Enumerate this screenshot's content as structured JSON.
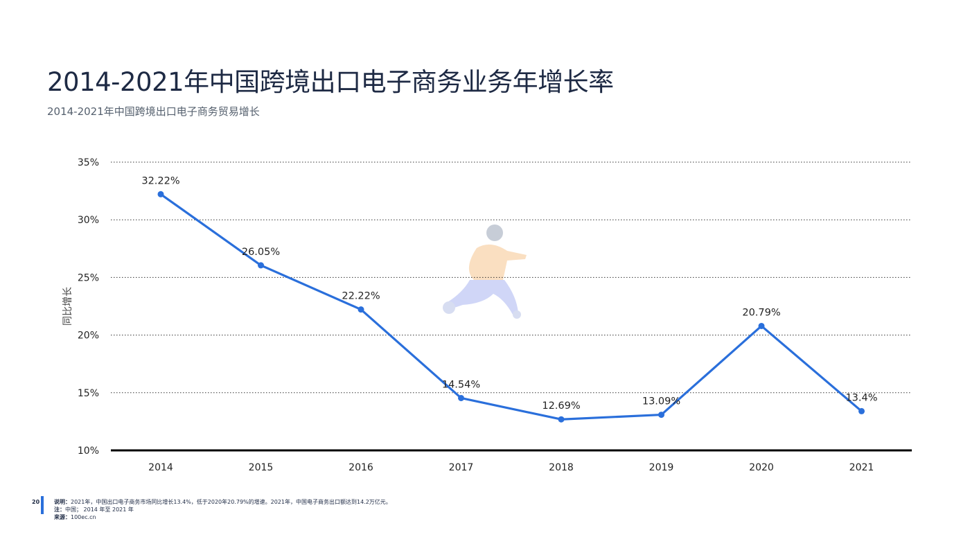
{
  "header": {
    "title": "2014-2021年中国跨境出口电子商务业务年增长率",
    "subtitle": "2014-2021年中国跨境出口电子商务贸易增长"
  },
  "chart_data": {
    "type": "line",
    "categories": [
      "2014",
      "2015",
      "2016",
      "2017",
      "2018",
      "2019",
      "2020",
      "2021"
    ],
    "values": [
      32.22,
      26.05,
      22.22,
      14.54,
      12.69,
      13.09,
      20.79,
      13.4
    ],
    "data_labels": [
      "32.22%",
      "26.05%",
      "22.22%",
      "14.54%",
      "12.69%",
      "13.09%",
      "20.79%",
      "13.4%"
    ],
    "yticks": [
      10,
      15,
      20,
      25,
      30,
      35
    ],
    "ytick_labels": [
      "10%",
      "15%",
      "20%",
      "25%",
      "30%",
      "35%"
    ],
    "ylim": [
      10,
      35
    ],
    "ylabel": "同比增长",
    "xlabel": "",
    "grid": true,
    "series_color": "#2a6fdb",
    "grid_color": "#333333",
    "axis_color": "#000000"
  },
  "footer": {
    "page_number": "20",
    "note_label": "说明：",
    "note_text": "2021年，中国出口电子商务市场同比增长13.4%，低于2020年20.79%的增速。2021年，中国电子商务出口额达到14.2万亿元。",
    "scope_label": "注：",
    "scope_text": "中国； 2014 年至 2021 年",
    "source_label": "来源：",
    "source_text": "100ec.cn",
    "accent_color": "#2a6fdb"
  },
  "decoration": {
    "illustration_icon": "running-person-illustration"
  }
}
